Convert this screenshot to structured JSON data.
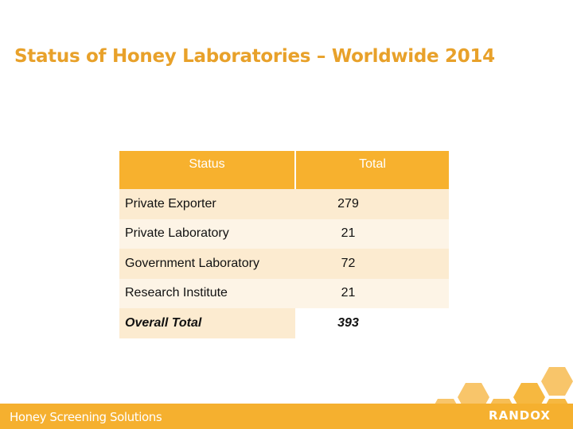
{
  "slide": {
    "title": "Status of Honey Laboratories – Worldwide 2014",
    "footer_text": "Honey Screening Solutions",
    "brand": "RANDOX"
  },
  "table": {
    "headers": [
      "Status",
      "Total"
    ],
    "rows": [
      {
        "status": "Private Exporter",
        "total": "279"
      },
      {
        "status": "Private Laboratory",
        "total": "21"
      },
      {
        "status": "Government Laboratory",
        "total": "72"
      },
      {
        "status": "Research Institute",
        "total": "21"
      },
      {
        "status": "Overall Total",
        "total": "393"
      }
    ]
  },
  "colors": {
    "accent": "#f5b02f",
    "title": "#e8a12a",
    "row_fill": "#fcebd0"
  }
}
